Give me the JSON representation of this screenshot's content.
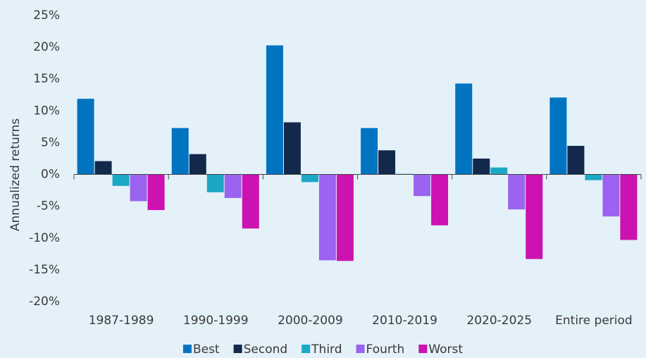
{
  "chart_data": {
    "type": "bar",
    "y_label": "Annualized returns",
    "categories": [
      "1987-1989",
      "1990-1999",
      "2000-2009",
      "2010-2019",
      "2020-2025",
      "Entire period"
    ],
    "series": [
      {
        "name": "Best",
        "color": "#0074c1",
        "values": [
          11.9,
          7.3,
          20.3,
          7.3,
          14.3,
          12.1
        ]
      },
      {
        "name": "Second",
        "color": "#13294b",
        "values": [
          2.1,
          3.2,
          8.2,
          3.8,
          2.5,
          4.5
        ]
      },
      {
        "name": "Third",
        "color": "#1ba8c4",
        "values": [
          -1.8,
          -2.8,
          -1.2,
          0.1,
          1.1,
          -0.9
        ]
      },
      {
        "name": "Fourth",
        "color": "#9b63f0",
        "values": [
          -4.2,
          -3.7,
          -13.5,
          -3.4,
          -5.5,
          -6.6
        ]
      },
      {
        "name": "Worst",
        "color": "#cc12b0",
        "values": [
          -5.6,
          -8.5,
          -13.6,
          -8.0,
          -13.3,
          -10.3
        ]
      }
    ],
    "ylim": [
      -20,
      25
    ],
    "yticks": [
      {
        "value": -20,
        "label": "-20%"
      },
      {
        "value": -15,
        "label": "-15%"
      },
      {
        "value": -10,
        "label": "-10%"
      },
      {
        "value": -5,
        "label": "-5%"
      },
      {
        "value": 0,
        "label": "0%"
      },
      {
        "value": 5,
        "label": "5%"
      },
      {
        "value": 10,
        "label": "10%"
      },
      {
        "value": 15,
        "label": "15%"
      },
      {
        "value": 20,
        "label": "20%"
      },
      {
        "value": 25,
        "label": "25%"
      }
    ],
    "grid": false,
    "legend": "bottom"
  }
}
